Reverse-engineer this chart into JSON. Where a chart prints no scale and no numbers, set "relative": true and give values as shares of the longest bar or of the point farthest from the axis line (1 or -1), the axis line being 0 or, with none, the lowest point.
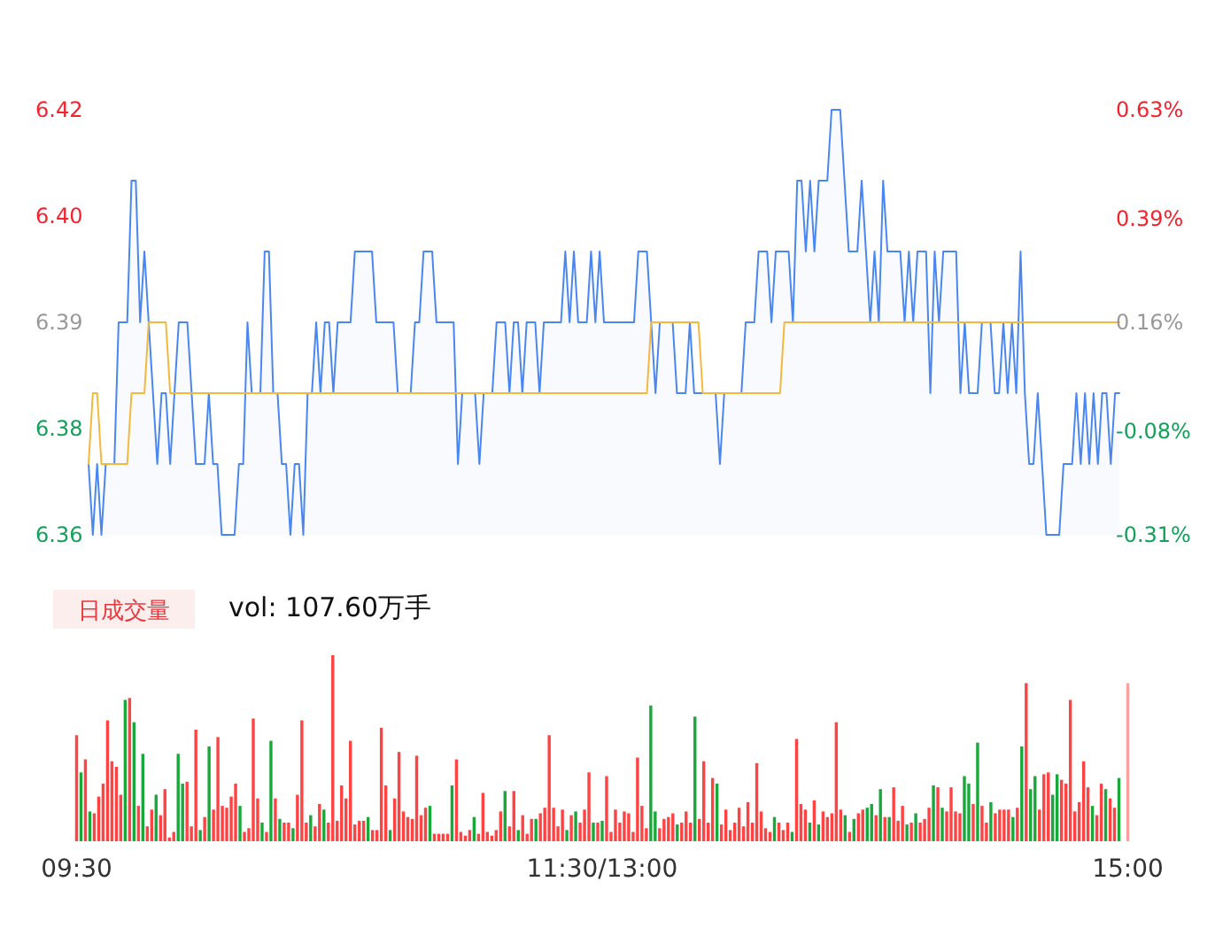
{
  "chart_data": [
    {
      "type": "line",
      "ylim": [
        6.36,
        6.42
      ],
      "categories": [
        null,
        null,
        null,
        null,
        null,
        null,
        null,
        null,
        null,
        null,
        null,
        null,
        null,
        null,
        null,
        null,
        null,
        null,
        null,
        null,
        null,
        null,
        null,
        null,
        null,
        null,
        null,
        null,
        null,
        null,
        null,
        null,
        null,
        null,
        null,
        null,
        null,
        null,
        null,
        null,
        null,
        null,
        null,
        null,
        null,
        null,
        null,
        null,
        null,
        null,
        null,
        null,
        null,
        null,
        null,
        null,
        null,
        null,
        null,
        null,
        null,
        null,
        null,
        null,
        null,
        null,
        null,
        null,
        null,
        null,
        null,
        null,
        null,
        null,
        null,
        null,
        null,
        null,
        null,
        null,
        null,
        null,
        null,
        null,
        null,
        null,
        null,
        null,
        null,
        null,
        null,
        null,
        null,
        null,
        null,
        null,
        null,
        null,
        null,
        null,
        null,
        null,
        null,
        null,
        null,
        null,
        null,
        null,
        null,
        null,
        null,
        null,
        null,
        null,
        null,
        null,
        null,
        null,
        null,
        null,
        null,
        null,
        null,
        null,
        null,
        null,
        null,
        null,
        null,
        null,
        null,
        null,
        null,
        null,
        null,
        null,
        null,
        null,
        null,
        null,
        null,
        null,
        null,
        null,
        null,
        null,
        null,
        null,
        null,
        null,
        null,
        null,
        null,
        null,
        null,
        null,
        null,
        null,
        null,
        null,
        null,
        null,
        null,
        null,
        null,
        null,
        null,
        null,
        null,
        null,
        null,
        null,
        null,
        null,
        null,
        null,
        null,
        null,
        null,
        null,
        null,
        null,
        null,
        null,
        null,
        null,
        null,
        null,
        null,
        null,
        null,
        null,
        null,
        null,
        null,
        null,
        null,
        null,
        null,
        null,
        null,
        null,
        null,
        null,
        null,
        null,
        null,
        null,
        null,
        null,
        null,
        null,
        null,
        null,
        null,
        null,
        null,
        null,
        null,
        null,
        null,
        null,
        null,
        null,
        null,
        null,
        null,
        null,
        null,
        null,
        null,
        null,
        null,
        null,
        null,
        null,
        null,
        null,
        null,
        null,
        null
      ],
      "yticks": [
        {
          "value": 6.36,
          "label": "6.36"
        },
        {
          "value": 6.375,
          "label": "6.38"
        },
        {
          "value": 6.39,
          "label": "6.39"
        },
        {
          "value": 6.405,
          "label": "6.40"
        },
        {
          "value": 6.42,
          "label": "6.42"
        }
      ],
      "tick_labels": "y",
      "y2lim": [
        -0.31,
        0.63
      ],
      "y2ticks": [
        {
          "value": -0.31,
          "label": "-0.31%"
        },
        {
          "value": -0.08,
          "label": "-0.08%"
        },
        {
          "value": 0.16,
          "label": "0.16%"
        },
        {
          "value": 0.39,
          "label": "0.39%"
        },
        {
          "value": 0.63,
          "label": "0.63%"
        }
      ],
      "series": [
        {
          "type": "area",
          "color": "#4a86f0",
          "values": [
            6.37,
            6.36,
            6.37,
            6.36,
            6.37,
            6.37,
            6.37,
            6.39,
            6.39,
            6.39,
            6.41,
            6.41,
            6.39,
            6.4,
            6.39,
            6.38,
            6.37,
            6.38,
            6.38,
            6.37,
            6.38,
            6.39,
            6.39,
            6.39,
            6.38,
            6.37,
            6.37,
            6.37,
            6.38,
            6.37,
            6.37,
            6.36,
            6.36,
            6.36,
            6.36,
            6.37,
            6.37,
            6.39,
            6.38,
            6.38,
            6.38,
            6.4,
            6.4,
            6.38,
            6.38,
            6.37,
            6.37,
            6.36,
            6.37,
            6.37,
            6.36,
            6.38,
            6.38,
            6.39,
            6.38,
            6.39,
            6.39,
            6.38,
            6.39,
            6.39,
            6.39,
            6.39,
            6.4,
            6.4,
            6.4,
            6.4,
            6.4,
            6.39,
            6.39,
            6.39,
            6.39,
            6.39,
            6.38,
            6.38,
            6.38,
            6.38,
            6.39,
            6.39,
            6.4,
            6.4,
            6.4,
            6.39,
            6.39,
            6.39,
            6.39,
            6.39,
            6.37,
            6.38,
            6.38,
            6.38,
            6.38,
            6.37,
            6.38,
            6.38,
            6.38,
            6.39,
            6.39,
            6.39,
            6.38,
            6.39,
            6.39,
            6.38,
            6.39,
            6.39,
            6.39,
            6.38,
            6.39,
            6.39,
            6.39,
            6.39,
            6.39,
            6.4,
            6.39,
            6.4,
            6.39,
            6.39,
            6.39,
            6.4,
            6.39,
            6.4,
            6.39,
            6.39,
            6.39,
            6.39,
            6.39,
            6.39,
            6.39,
            6.39,
            6.4,
            6.4,
            6.4,
            6.39,
            6.38,
            6.39,
            6.39,
            6.39,
            6.39,
            6.38,
            6.38,
            6.38,
            6.39,
            6.38,
            6.38,
            6.38,
            6.38,
            6.38,
            6.38,
            6.37,
            6.38,
            6.38,
            6.38,
            6.38,
            6.38,
            6.39,
            6.39,
            6.39,
            6.4,
            6.4,
            6.4,
            6.39,
            6.4,
            6.4,
            6.4,
            6.4,
            6.39,
            6.41,
            6.41,
            6.4,
            6.41,
            6.4,
            6.41,
            6.41,
            6.41,
            6.42,
            6.42,
            6.42,
            6.41,
            6.4,
            6.4,
            6.4,
            6.41,
            6.4,
            6.39,
            6.4,
            6.39,
            6.41,
            6.4,
            6.4,
            6.4,
            6.4,
            6.39,
            6.4,
            6.39,
            6.4,
            6.4,
            6.4,
            6.38,
            6.4,
            6.39,
            6.4,
            6.4,
            6.4,
            6.4,
            6.38,
            6.39,
            6.38,
            6.38,
            6.38,
            6.39,
            6.39,
            6.39,
            6.38,
            6.38,
            6.39,
            6.38,
            6.39,
            6.38,
            6.4,
            6.38,
            6.37,
            6.37,
            6.38,
            6.37,
            6.36,
            6.36,
            6.36,
            6.36,
            6.37,
            6.37,
            6.37,
            6.38,
            6.37,
            6.38,
            6.37,
            6.38,
            6.37,
            6.38,
            6.38,
            6.37,
            6.38,
            6.38
          ]
        },
        {
          "type": "line",
          "color": "#f5b83d",
          "values": [
            6.37,
            6.38,
            6.38,
            6.37,
            6.37,
            6.37,
            6.37,
            6.37,
            6.37,
            6.37,
            6.38,
            6.38,
            6.38,
            6.38,
            6.39,
            6.39,
            6.39,
            6.39,
            6.39,
            6.38,
            6.38,
            6.38,
            6.38,
            6.38,
            6.38,
            6.38,
            6.38,
            6.38,
            6.38,
            6.38,
            6.38,
            6.38,
            6.38,
            6.38,
            6.38,
            6.38,
            6.38,
            6.38,
            6.38,
            6.38,
            6.38,
            6.38,
            6.38,
            6.38,
            6.38,
            6.38,
            6.38,
            6.38,
            6.38,
            6.38,
            6.38,
            6.38,
            6.38,
            6.38,
            6.38,
            6.38,
            6.38,
            6.38,
            6.38,
            6.38,
            6.38,
            6.38,
            6.38,
            6.38,
            6.38,
            6.38,
            6.38,
            6.38,
            6.38,
            6.38,
            6.38,
            6.38,
            6.38,
            6.38,
            6.38,
            6.38,
            6.38,
            6.38,
            6.38,
            6.38,
            6.38,
            6.38,
            6.38,
            6.38,
            6.38,
            6.38,
            6.38,
            6.38,
            6.38,
            6.38,
            6.38,
            6.38,
            6.38,
            6.38,
            6.38,
            6.38,
            6.38,
            6.38,
            6.38,
            6.38,
            6.38,
            6.38,
            6.38,
            6.38,
            6.38,
            6.38,
            6.38,
            6.38,
            6.38,
            6.38,
            6.38,
            6.38,
            6.38,
            6.38,
            6.38,
            6.38,
            6.38,
            6.38,
            6.38,
            6.38,
            6.38,
            6.38,
            6.38,
            6.38,
            6.38,
            6.38,
            6.38,
            6.38,
            6.38,
            6.38,
            6.38,
            6.39,
            6.39,
            6.39,
            6.39,
            6.39,
            6.39,
            6.39,
            6.39,
            6.39,
            6.39,
            6.39,
            6.39,
            6.38,
            6.38,
            6.38,
            6.38,
            6.38,
            6.38,
            6.38,
            6.38,
            6.38,
            6.38,
            6.38,
            6.38,
            6.38,
            6.38,
            6.38,
            6.38,
            6.38,
            6.38,
            6.38,
            6.39,
            6.39,
            6.39,
            6.39,
            6.39,
            6.39,
            6.39,
            6.39,
            6.39,
            6.39,
            6.39,
            6.39,
            6.39,
            6.39,
            6.39,
            6.39,
            6.39,
            6.39,
            6.39,
            6.39,
            6.39,
            6.39,
            6.39,
            6.39,
            6.39,
            6.39,
            6.39,
            6.39,
            6.39,
            6.39,
            6.39,
            6.39,
            6.39,
            6.39,
            6.39,
            6.39,
            6.39,
            6.39,
            6.39,
            6.39,
            6.39,
            6.39,
            6.39,
            6.39,
            6.39,
            6.39,
            6.39,
            6.39,
            6.39,
            6.39,
            6.39,
            6.39,
            6.39,
            6.39,
            6.39,
            6.39,
            6.39,
            6.39,
            6.39,
            6.39,
            6.39,
            6.39,
            6.39,
            6.39,
            6.39,
            6.39,
            6.39,
            6.39,
            6.39,
            6.39,
            6.39,
            6.39,
            6.39,
            6.39,
            6.39,
            6.39,
            6.39,
            6.39,
            6.39
          ]
        }
      ]
    },
    {
      "type": "bar",
      "relative": true,
      "title": "日成交量",
      "subtitle": "vol: 107.60万手",
      "categories": [
        "09:30",
        null,
        null,
        null,
        null,
        null,
        null,
        null,
        null,
        null,
        null,
        null,
        null,
        null,
        null,
        null,
        null,
        null,
        null,
        null,
        null,
        null,
        null,
        null,
        null,
        null,
        null,
        null,
        null,
        null,
        null,
        null,
        null,
        null,
        null,
        null,
        null,
        null,
        null,
        null,
        null,
        null,
        null,
        null,
        null,
        null,
        null,
        null,
        null,
        null,
        null,
        null,
        null,
        null,
        null,
        null,
        null,
        null,
        null,
        null,
        null,
        null,
        null,
        null,
        null,
        null,
        null,
        null,
        null,
        null,
        null,
        null,
        null,
        null,
        null,
        null,
        null,
        null,
        null,
        null,
        null,
        null,
        null,
        null,
        null,
        null,
        null,
        null,
        null,
        null,
        null,
        null,
        null,
        null,
        null,
        null,
        null,
        null,
        null,
        null,
        null,
        null,
        null,
        null,
        null,
        null,
        null,
        null,
        null,
        null,
        null,
        null,
        null,
        null,
        null,
        null,
        null,
        null,
        null,
        "11:30/13:00",
        null,
        null,
        null,
        null,
        null,
        null,
        null,
        null,
        null,
        null,
        null,
        null,
        null,
        null,
        null,
        null,
        null,
        null,
        null,
        null,
        null,
        null,
        null,
        null,
        null,
        null,
        null,
        null,
        null,
        null,
        null,
        null,
        null,
        null,
        null,
        null,
        null,
        null,
        null,
        null,
        null,
        null,
        null,
        null,
        null,
        null,
        null,
        null,
        null,
        null,
        null,
        null,
        null,
        null,
        null,
        null,
        null,
        null,
        null,
        null,
        null,
        null,
        null,
        null,
        null,
        null,
        null,
        null,
        null,
        null,
        null,
        null,
        null,
        null,
        null,
        null,
        null,
        null,
        null,
        null,
        null,
        null,
        null,
        null,
        null,
        null,
        null,
        null,
        null,
        null,
        null,
        null,
        null,
        null,
        null,
        null,
        null,
        null,
        null,
        null,
        null,
        null,
        null,
        null,
        null,
        null,
        null,
        null,
        null,
        null,
        null,
        null,
        null,
        null,
        null,
        null,
        null,
        null,
        "15:00"
      ],
      "values": [
        0.57,
        0.37,
        0.44,
        0.16,
        0.15,
        0.24,
        0.31,
        0.65,
        0.43,
        0.4,
        0.25,
        0.76,
        0.77,
        0.64,
        0.19,
        0.47,
        0.08,
        0.17,
        0.25,
        0.14,
        0.28,
        0.02,
        0.05,
        0.47,
        0.31,
        0.32,
        0.08,
        0.6,
        0.06,
        0.13,
        0.51,
        0.17,
        0.56,
        0.19,
        0.18,
        0.24,
        0.31,
        0.19,
        0.05,
        0.07,
        0.66,
        0.23,
        0.1,
        0.05,
        0.54,
        0.23,
        0.12,
        0.1,
        0.1,
        0.07,
        0.25,
        0.65,
        0.1,
        0.14,
        0.08,
        0.2,
        0.17,
        0.1,
        1,
        0.11,
        0.3,
        0.23,
        0.54,
        0.09,
        0.11,
        0.11,
        0.13,
        0.06,
        0.06,
        0.61,
        0.3,
        0.06,
        0.23,
        0.48,
        0.16,
        0.13,
        0.12,
        0.46,
        0.14,
        0.18,
        0.19,
        0.04,
        0.04,
        0.04,
        0.04,
        0.3,
        0.44,
        0.05,
        0.03,
        0.06,
        0.13,
        0.04,
        0.26,
        0.05,
        0.03,
        0.06,
        0.16,
        0.27,
        0.08,
        0.27,
        0.06,
        0.14,
        0.04,
        0.12,
        0.12,
        0.15,
        0.18,
        0.57,
        0.18,
        0.08,
        0.17,
        0.06,
        0.14,
        0.16,
        0.1,
        0.17,
        0.37,
        0.1,
        0.1,
        0.11,
        0.35,
        0.05,
        0.17,
        0.1,
        0.16,
        0.15,
        0.05,
        0.45,
        0.19,
        0.07,
        0.73,
        0.16,
        0.07,
        0.12,
        0.13,
        0.15,
        0.09,
        0.1,
        0.16,
        0.1,
        0.67,
        0.12,
        0.43,
        0.1,
        0.34,
        0.31,
        0.09,
        0.17,
        0.06,
        0.1,
        0.18,
        0.08,
        0.21,
        0.1,
        0.42,
        0.16,
        0.07,
        0.05,
        0.13,
        0.1,
        0.06,
        0.1,
        0.05,
        0.55,
        0.2,
        0.17,
        0.1,
        0.22,
        0.09,
        0.16,
        0.13,
        0.15,
        0.64,
        0.17,
        0.14,
        0.05,
        0.12,
        0.15,
        0.17,
        0.18,
        0.2,
        0.14,
        0.28,
        0.13,
        0.13,
        0.29,
        0.11,
        0.19,
        0.09,
        0.1,
        0.15,
        0.1,
        0.12,
        0.18,
        0.3,
        0.29,
        0.18,
        0.16,
        0.29,
        0.16,
        0.15,
        0.35,
        0.31,
        0.2,
        0.53,
        0.19,
        0.1,
        0.21,
        0.15,
        0.17,
        0.17,
        0.17,
        0.13,
        0.18,
        0.51,
        0.85,
        0.28,
        0.35,
        0.17,
        0.36,
        0.37,
        0.25,
        0.36,
        0.33,
        0.31,
        0.76,
        0.16,
        0.21,
        0.43,
        0.29,
        0.19,
        0.14,
        0.31,
        0.28,
        0.23,
        0.18,
        0.34,
        null,
        0.85
      ],
      "colors": [
        "#ff4242",
        "#19a83a",
        "#ff4242",
        "#19a83a",
        "#ff4242",
        "#ff4242",
        "#ff4242",
        "#ff4242",
        "#ff4242",
        "#ff4242",
        "#ff4242",
        "#19a83a",
        "#ff4242",
        "#19a83a",
        "#ff4242",
        "#19a83a",
        "#ff4242",
        "#ff4242",
        "#19a83a",
        "#ff4242",
        "#ff4242",
        "#ff4242",
        "#ff4242",
        "#19a83a",
        "#19a83a",
        "#ff4242",
        "#ff4242",
        "#ff4242",
        "#19a83a",
        "#ff4242",
        "#19a83a",
        "#ff4242",
        "#ff4242",
        "#ff4242",
        "#ff4242",
        "#ff4242",
        "#ff4242",
        "#19a83a",
        "#ff4242",
        "#ff4242",
        "#ff4242",
        "#ff4242",
        "#19a83a",
        "#ff4242",
        "#19a83a",
        "#ff4242",
        "#19a83a",
        "#ff4242",
        "#ff4242",
        "#19a83a",
        "#ff4242",
        "#ff4242",
        "#ff4242",
        "#19a83a",
        "#ff4242",
        "#ff4242",
        "#19a83a",
        "#ff4242",
        "#ff4242",
        "#ff4242",
        "#ff4242",
        "#ff4242",
        "#ff4242",
        "#ff4242",
        "#ff4242",
        "#ff4242",
        "#19a83a",
        "#ff4242",
        "#ff4242",
        "#ff4242",
        "#ff4242",
        "#19a83a",
        "#ff4242",
        "#ff4242",
        "#ff4242",
        "#ff4242",
        "#ff4242",
        "#ff4242",
        "#ff4242",
        "#ff4242",
        "#19a83a",
        "#ff4242",
        "#ff4242",
        "#ff4242",
        "#ff4242",
        "#19a83a",
        "#ff4242",
        "#ff4242",
        "#ff4242",
        "#ff4242",
        "#19a83a",
        "#ff4242",
        "#ff4242",
        "#ff4242",
        "#ff4242",
        "#ff4242",
        "#ff4242",
        "#19a83a",
        "#ff4242",
        "#ff4242",
        "#19a83a",
        "#ff4242",
        "#ff4242",
        "#ff4242",
        "#19a83a",
        "#ff4242",
        "#ff4242",
        "#ff4242",
        "#ff4242",
        "#ff4242",
        "#ff4242",
        "#19a83a",
        "#ff4242",
        "#19a83a",
        "#ff4242",
        "#ff4242",
        "#ff4242",
        "#19a83a",
        "#ff4242",
        "#19a83a",
        "#ff4242",
        "#ff4242",
        "#ff4242",
        "#ff4242",
        "#ff4242",
        "#ff4242",
        "#ff4242",
        "#ff4242",
        "#ff4242",
        "#ff4242",
        "#19a83a",
        "#19a83a",
        "#ff4242",
        "#ff4242",
        "#ff4242",
        "#ff4242",
        "#19a83a",
        "#ff4242",
        "#ff4242",
        "#ff4242",
        "#19a83a",
        "#ff4242",
        "#ff4242",
        "#ff4242",
        "#ff4242",
        "#19a83a",
        "#ff4242",
        "#ff4242",
        "#ff4242",
        "#ff4242",
        "#ff4242",
        "#ff4242",
        "#ff4242",
        "#ff4242",
        "#ff4242",
        "#ff4242",
        "#ff4242",
        "#ff4242",
        "#19a83a",
        "#ff4242",
        "#ff4242",
        "#ff4242",
        "#19a83a",
        "#ff4242",
        "#ff4242",
        "#ff4242",
        "#19a83a",
        "#ff4242",
        "#19a83a",
        "#ff4242",
        "#ff4242",
        "#ff4242",
        "#ff4242",
        "#ff4242",
        "#19a83a",
        "#ff4242",
        "#19a83a",
        "#ff4242",
        "#ff4242",
        "#19a83a",
        "#19a83a",
        "#ff4242",
        "#19a83a",
        "#ff4242",
        "#19a83a",
        "#ff4242",
        "#ff4242",
        "#ff4242",
        "#19a83a",
        "#ff4242",
        "#19a83a",
        "#ff4242",
        "#ff4242",
        "#ff4242",
        "#19a83a",
        "#ff4242",
        "#19a83a",
        "#ff4242",
        "#ff4242",
        "#ff4242",
        "#ff4242",
        "#19a83a",
        "#19a83a",
        "#ff4242",
        "#19a83a",
        "#ff4242",
        "#ff4242",
        "#19a83a",
        "#ff4242",
        "#ff4242",
        "#ff4242",
        "#ff4242",
        "#19a83a",
        "#ff4242",
        "#19a83a",
        "#ff4242",
        "#19a83a",
        "#19a83a",
        "#ff4242",
        "#ff4242",
        "#ff4242",
        "#19a83a",
        "#19a83a",
        "#ff4242",
        "#ff4242",
        "#ff4242",
        "#ff4242",
        "#ff4242",
        "#ff4242",
        "#ff4242",
        "#19a83a",
        "#ff4242",
        "#ff4242",
        "#19a83a",
        "#ff4242",
        "#ff4242",
        "#19a83a",
        null,
        "#ffa0a0"
      ]
    }
  ]
}
